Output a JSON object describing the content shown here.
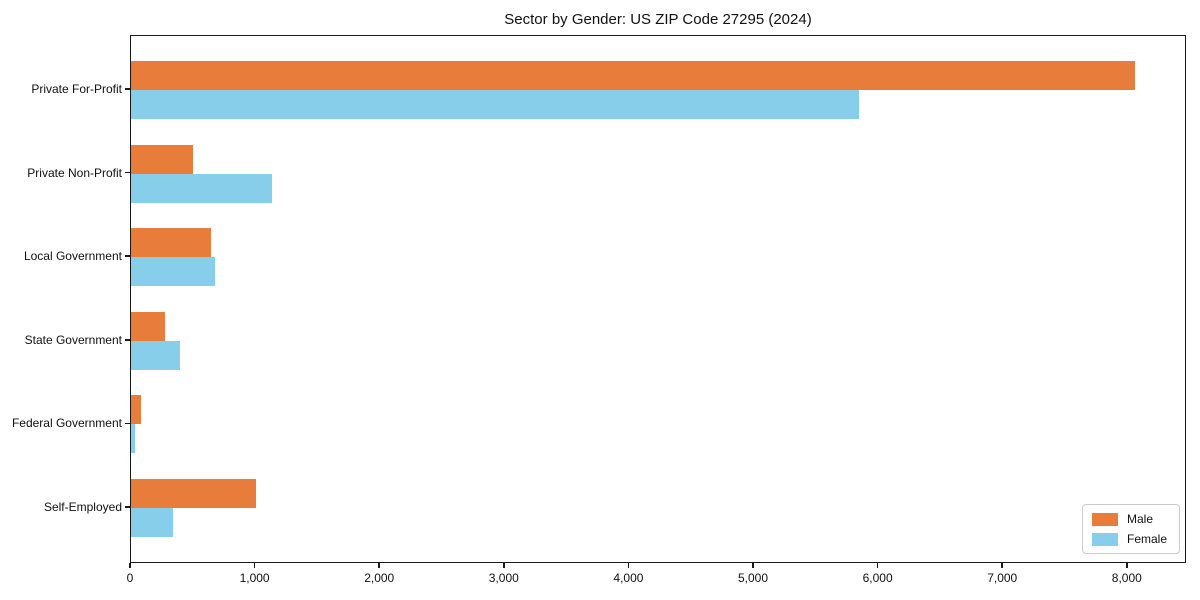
{
  "chart_data": {
    "type": "bar",
    "orientation": "horizontal",
    "title": "Sector by Gender: US ZIP Code 27295 (2024)",
    "categories": [
      "Private For-Profit",
      "Private Non-Profit",
      "Local Government",
      "State Government",
      "Federal Government",
      "Self-Employed"
    ],
    "series": [
      {
        "name": "Male",
        "color": "#e87d3b",
        "values": [
          8060,
          500,
          640,
          270,
          80,
          1000
        ]
      },
      {
        "name": "Female",
        "color": "#87ceeb",
        "values": [
          5840,
          1130,
          670,
          390,
          30,
          340
        ]
      }
    ],
    "xlabel": "",
    "ylabel": "",
    "xlim": [
      0,
      8475
    ],
    "x_ticks": [
      0,
      1000,
      2000,
      3000,
      4000,
      5000,
      6000,
      7000,
      8000
    ],
    "x_tick_labels": [
      "0",
      "1,000",
      "2,000",
      "3,000",
      "4,000",
      "5,000",
      "6,000",
      "7,000",
      "8,000"
    ],
    "grid": false,
    "legend": {
      "position": "lower right",
      "entries": [
        "Male",
        "Female"
      ]
    }
  }
}
